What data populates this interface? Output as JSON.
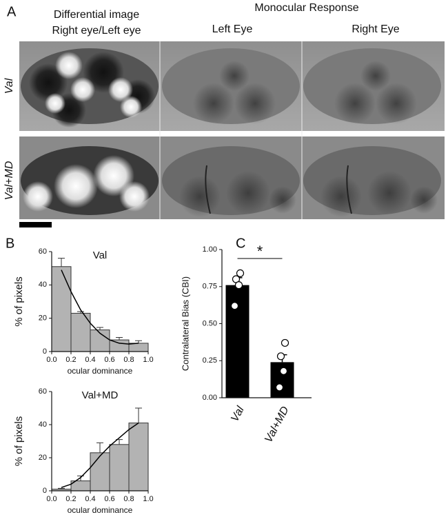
{
  "panels": {
    "a": "A",
    "b": "B",
    "c": "C"
  },
  "panel_a": {
    "diff_title": "Differential image",
    "diff_subtitle": "Right eye/Left eye",
    "mono_title": "Monocular Response",
    "left_eye": "Left Eye",
    "right_eye": "Right Eye",
    "rows": [
      "Val",
      "Val+MD"
    ]
  },
  "chart_data": [
    {
      "type": "histogram",
      "title": "Val",
      "x_label": "ocular dominance",
      "y_label": "% of pixels",
      "bins": [
        0.0,
        0.2,
        0.4,
        0.6,
        0.8,
        1.0
      ],
      "values": [
        51,
        23,
        13,
        7,
        5
      ],
      "errors": [
        5,
        1,
        1.5,
        1.5,
        1.5
      ],
      "color": "#b3b3b3",
      "fit": {
        "x": [
          0.1,
          0.2,
          0.3,
          0.4,
          0.5,
          0.6,
          0.7,
          0.8,
          0.9
        ],
        "y": [
          49,
          36,
          25,
          17,
          11,
          7,
          5,
          4.5,
          5
        ]
      },
      "xlim": [
        0,
        1
      ],
      "ylim": [
        0,
        60
      ],
      "xticks": [
        {
          "value": 0,
          "label": "0.0"
        },
        0.2,
        0.4,
        0.6,
        0.8,
        {
          "value": 1,
          "label": "1.0"
        }
      ],
      "yticks": [
        0,
        20,
        40,
        60
      ]
    },
    {
      "type": "histogram",
      "title": "Val+MD",
      "x_label": "ocular dominance",
      "y_label": "% of pixels",
      "bins": [
        0.0,
        0.2,
        0.4,
        0.6,
        0.8,
        1.0
      ],
      "values": [
        1,
        6,
        23,
        28,
        41
      ],
      "errors": [
        0.5,
        3,
        6,
        3,
        9
      ],
      "color": "#b3b3b3",
      "fit": {
        "x": [
          0.1,
          0.2,
          0.3,
          0.4,
          0.5,
          0.6,
          0.7,
          0.8,
          0.9
        ],
        "y": [
          2,
          4,
          8,
          14,
          21,
          27,
          32,
          37,
          41
        ]
      },
      "xlim": [
        0,
        1
      ],
      "ylim": [
        0,
        60
      ],
      "xticks": [
        {
          "value": 0,
          "label": "0.0"
        },
        0.2,
        0.4,
        0.6,
        0.8,
        {
          "value": 1,
          "label": "1.0"
        }
      ],
      "yticks": [
        0,
        20,
        40,
        60
      ]
    },
    {
      "type": "bar",
      "y_label": "Contralateral Bias (CBI)",
      "annotation": "*",
      "categories": [
        "Val",
        "Val+MD"
      ],
      "values": [
        0.76,
        0.24
      ],
      "errors": [
        0.05,
        0.05
      ],
      "points": [
        [
          0.84,
          0.8,
          0.76,
          0.62
        ],
        [
          0.37,
          0.28,
          0.18,
          0.07
        ]
      ],
      "color": "#000000",
      "ylim": [
        0,
        1
      ],
      "yticks": [
        {
          "value": 0,
          "label": "0.00"
        },
        {
          "value": 0.25,
          "label": "0.25"
        },
        {
          "value": 0.5,
          "label": "0.50"
        },
        {
          "value": 0.75,
          "label": "0.75"
        },
        {
          "value": 1,
          "label": "1.00"
        }
      ]
    }
  ]
}
